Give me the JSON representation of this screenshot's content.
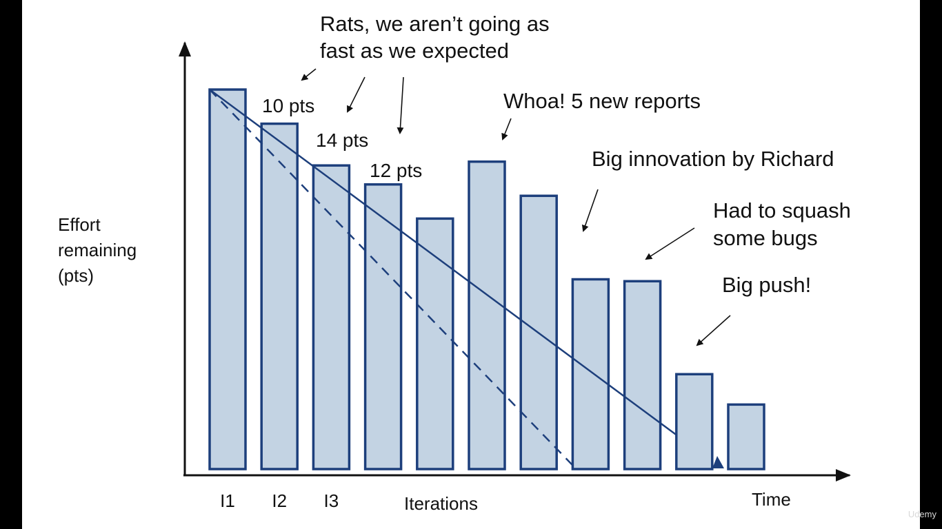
{
  "chart_data": {
    "type": "bar",
    "xlabel": "Iterations",
    "xaxis_end_label": "Time",
    "ylabel": [
      "Effort",
      "remaining",
      "(pts)"
    ],
    "categories": [
      "I1",
      "I2",
      "I3",
      "",
      "",
      "",
      "",
      "",
      "",
      "",
      ""
    ],
    "values": [
      100,
      91,
      80,
      75,
      66,
      81,
      72,
      50,
      49.5,
      25,
      17
    ],
    "ylim": [
      0,
      100
    ],
    "bar_labels": [
      {
        "after_bar": 1,
        "text": "10 pts"
      },
      {
        "after_bar": 2,
        "text": "14 pts"
      },
      {
        "after_bar": 3,
        "text": "12 pts"
      }
    ],
    "trend_lines": [
      {
        "style": "solid",
        "from": {
          "bar": 1,
          "value": 100
        },
        "to": {
          "bar": 10,
          "value": 9
        }
      },
      {
        "style": "dashed",
        "from": {
          "bar": 1,
          "value": 100
        },
        "to": {
          "bar": 8,
          "value": 1
        }
      }
    ],
    "annotations": [
      {
        "lines": [
          "Rats, we aren’t going as",
          "fast as we expected"
        ]
      },
      {
        "lines": [
          "Whoa! 5 new reports"
        ]
      },
      {
        "lines": [
          "Big innovation by Richard"
        ]
      },
      {
        "lines": [
          "Had to squash",
          "some bugs"
        ]
      },
      {
        "lines": [
          "Big push!"
        ]
      }
    ],
    "colors": {
      "bar_fill": "#c3d3e3",
      "bar_stroke": "#1d3f7c",
      "trend": "#1d3f7c",
      "axis": "#111111"
    }
  },
  "watermark": "Udemy"
}
